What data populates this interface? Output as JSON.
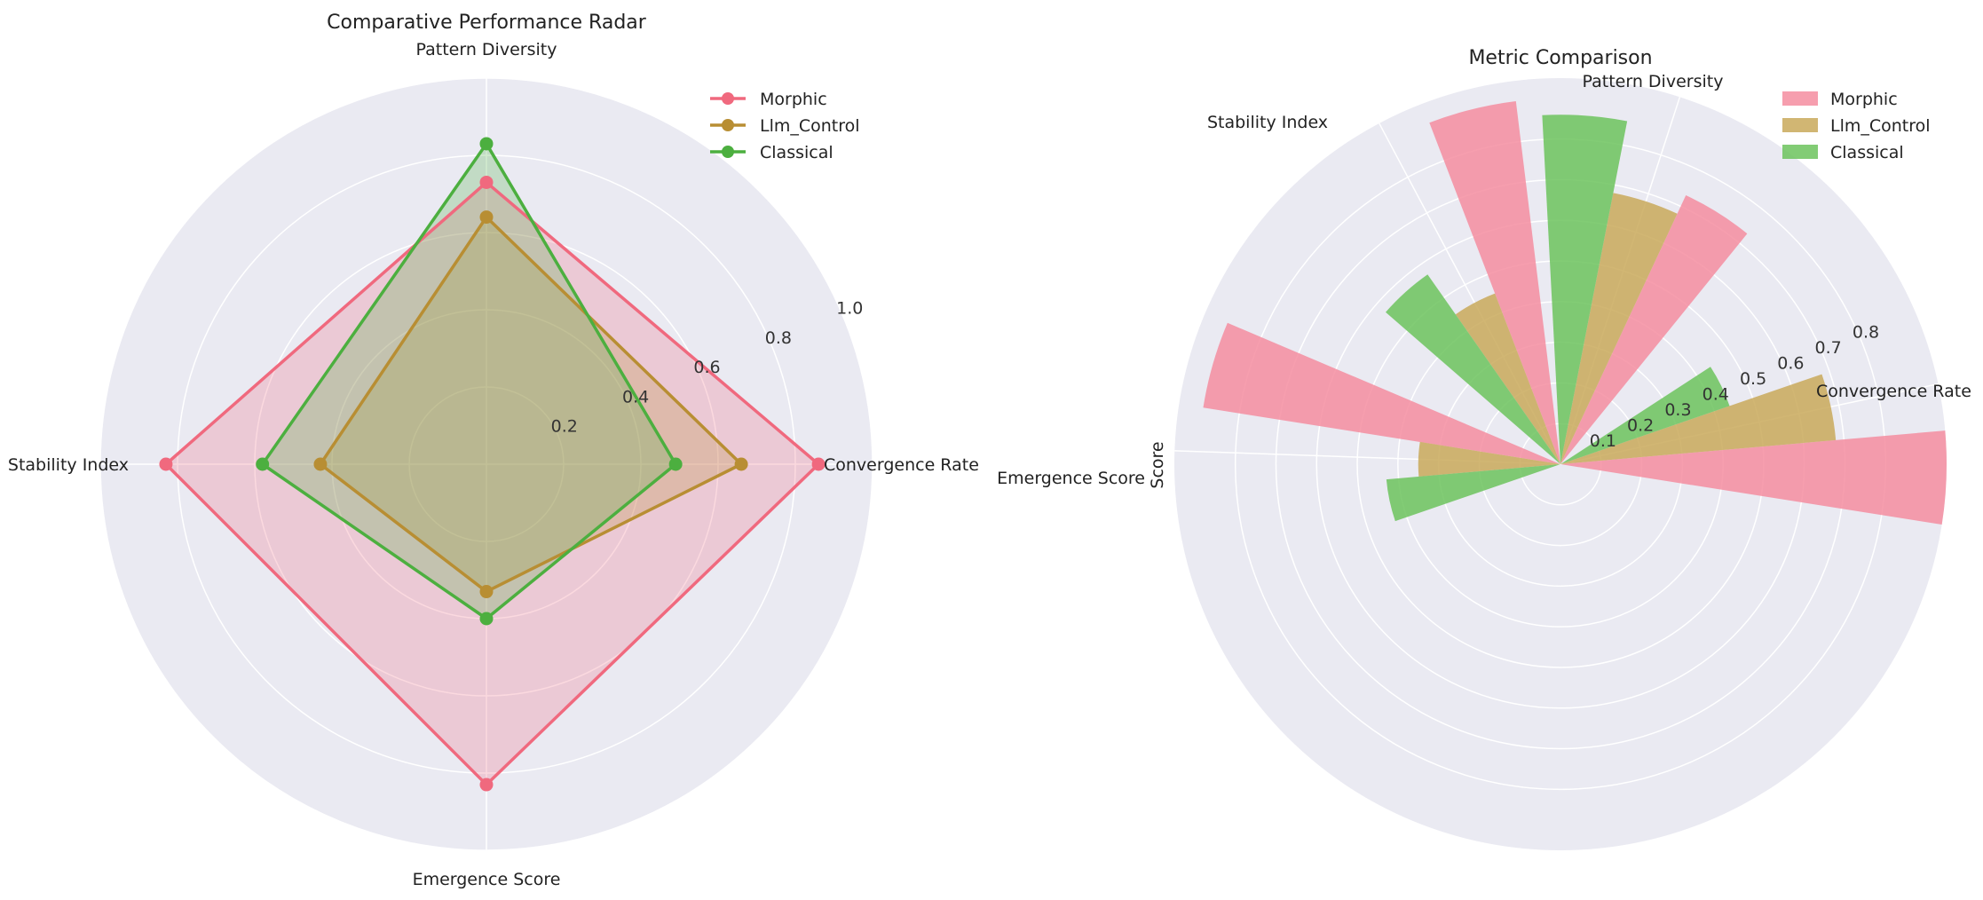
{
  "chart_data": [
    {
      "type": "radar",
      "title": "Comparative Performance Radar",
      "categories": [
        "Convergence Rate",
        "Pattern Diversity",
        "Stability Index",
        "Emergence Score"
      ],
      "rlim": [
        0,
        1.0
      ],
      "r_ticks": [
        "0.2",
        "0.4",
        "0.6",
        "0.8",
        "1.0"
      ],
      "legend_position": "top-right",
      "grid": true,
      "series": [
        {
          "name": "Morphic",
          "color": "#f0697e",
          "values": [
            0.86,
            0.73,
            0.83,
            0.83
          ]
        },
        {
          "name": "Llm_Control",
          "color": "#b88e33",
          "values": [
            0.66,
            0.64,
            0.43,
            0.33
          ]
        },
        {
          "name": "Classical",
          "color": "#4caf3f",
          "values": [
            0.49,
            0.83,
            0.58,
            0.4
          ]
        }
      ]
    },
    {
      "type": "polar_bar",
      "title": "Metric Comparison",
      "ylabel": "Score",
      "categories": [
        "Convergence Rate",
        "Pattern Diversity",
        "Stability Index",
        "Emergence Score"
      ],
      "rlim": [
        0,
        0.95
      ],
      "r_ticks": [
        "0.1",
        "0.2",
        "0.3",
        "0.4",
        "0.5",
        "0.6",
        "0.7",
        "0.8"
      ],
      "legend_position": "top-right",
      "grid": true,
      "series": [
        {
          "name": "Morphic",
          "color": "#f58da0",
          "values": [
            0.95,
            0.73,
            0.9,
            0.89
          ]
        },
        {
          "name": "Llm_Control",
          "color": "#c9a95a",
          "values": [
            0.68,
            0.68,
            0.45,
            0.35
          ]
        },
        {
          "name": "Classical",
          "color": "#6cc35d",
          "values": [
            0.44,
            0.86,
            0.57,
            0.43
          ]
        }
      ]
    }
  ]
}
